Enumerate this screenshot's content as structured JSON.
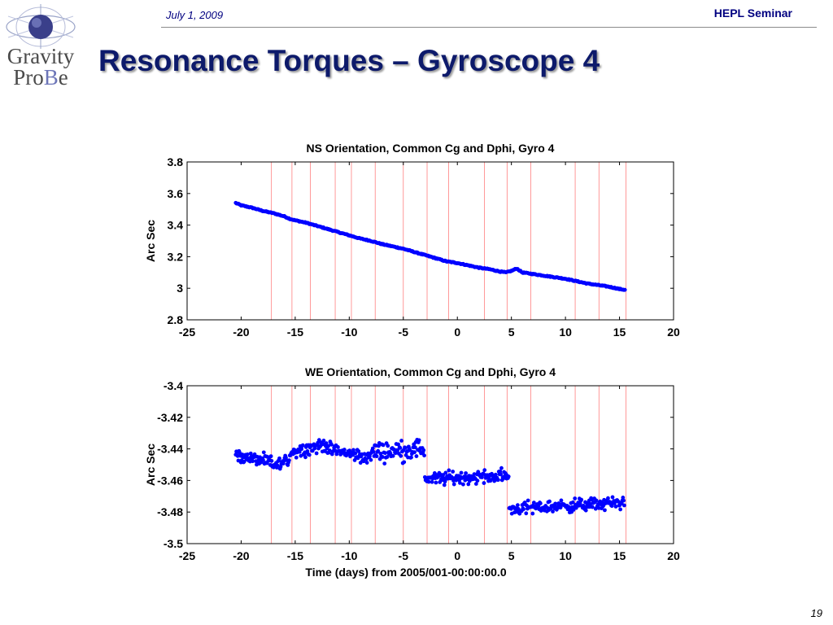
{
  "header": {
    "date": "July 1, 2009",
    "seminar": "HEPL Seminar",
    "title": "Resonance Torques – Gyroscope 4",
    "page_number": "19"
  },
  "logo": {
    "line1": "Gravity",
    "line2_a": "Pro",
    "line2_b": "B",
    "line2_c": "e"
  },
  "colors": {
    "series": "#0000ff",
    "resonance_line": "#ff8080",
    "title": "#0d1a6b"
  },
  "chart_data": [
    {
      "type": "scatter",
      "title": "NS Orientation, Common Cg and Dphi, Gyro 4",
      "xlabel": "",
      "ylabel": "Arc Sec",
      "xlim": [
        -25,
        20
      ],
      "ylim": [
        2.8,
        3.8
      ],
      "xticks": [
        -25,
        -20,
        -15,
        -10,
        -5,
        0,
        5,
        10,
        15,
        20
      ],
      "yticks": [
        2.8,
        3,
        3.2,
        3.4,
        3.6,
        3.8
      ],
      "ytick_labels": [
        "2.8",
        "3",
        "3.2",
        "3.4",
        "3.6",
        "3.8"
      ],
      "grid": false,
      "resonance_x": [
        -17.2,
        -15.3,
        -13.6,
        -11.3,
        -9.8,
        -7.6,
        -5.0,
        -2.8,
        -0.8,
        2.5,
        4.6,
        6.8,
        10.9,
        13.1,
        15.6
      ],
      "series": [
        {
          "values_x": [
            -20.5,
            -20,
            -19,
            -18,
            -17,
            -16.5,
            -16,
            -15.5,
            -15,
            -14,
            -13,
            -12,
            -11,
            -10,
            -9,
            -8,
            -7,
            -6,
            -5,
            -4,
            -3,
            -2,
            -1,
            0,
            1,
            2,
            3,
            4,
            4.5,
            5,
            5.5,
            6,
            7,
            8,
            9,
            10,
            11,
            12,
            13,
            14,
            15,
            15.5
          ],
          "values_y": [
            3.54,
            3.525,
            3.51,
            3.49,
            3.475,
            3.465,
            3.455,
            3.44,
            3.43,
            3.415,
            3.395,
            3.375,
            3.355,
            3.335,
            3.315,
            3.3,
            3.28,
            3.265,
            3.25,
            3.23,
            3.21,
            3.19,
            3.17,
            3.16,
            3.145,
            3.13,
            3.12,
            3.105,
            3.1,
            3.11,
            3.125,
            3.1,
            3.09,
            3.08,
            3.07,
            3.06,
            3.045,
            3.03,
            3.02,
            3.01,
            2.995,
            2.99
          ]
        }
      ]
    },
    {
      "type": "scatter",
      "title": "WE Orientation, Common Cg and Dphi, Gyro 4",
      "xlabel": "Time (days) from 2005/001-00:00:00.0",
      "ylabel": "Arc Sec",
      "xlim": [
        -25,
        20
      ],
      "ylim": [
        -3.5,
        -3.4
      ],
      "xticks": [
        -25,
        -20,
        -15,
        -10,
        -5,
        0,
        5,
        10,
        15,
        20
      ],
      "yticks": [
        -3.5,
        -3.48,
        -3.46,
        -3.44,
        -3.42,
        -3.4
      ],
      "ytick_labels": [
        "-3.5",
        "-3.48",
        "-3.46",
        "-3.44",
        "-3.42",
        "-3.4"
      ],
      "grid": false,
      "resonance_x": [
        -17.2,
        -15.3,
        -13.6,
        -11.3,
        -9.8,
        -7.6,
        -5.0,
        -2.8,
        -0.8,
        2.5,
        4.6,
        6.8,
        10.9,
        13.1,
        15.6
      ],
      "series": [
        {
          "segments": [
            {
              "x_start": -20.5,
              "x_end": -17.0,
              "y_start": -3.444,
              "y_end": -3.449,
              "spread": 0.004
            },
            {
              "x_start": -17.0,
              "x_end": -15.5,
              "y_start": -3.451,
              "y_end": -3.447,
              "spread": 0.004
            },
            {
              "x_start": -15.5,
              "x_end": -12.0,
              "y_start": -3.442,
              "y_end": -3.437,
              "spread": 0.004
            },
            {
              "x_start": -12.0,
              "x_end": -8.0,
              "y_start": -3.44,
              "y_end": -3.446,
              "spread": 0.004
            },
            {
              "x_start": -8.0,
              "x_end": -3.0,
              "y_start": -3.442,
              "y_end": -3.44,
              "spread": 0.006
            },
            {
              "x_start": -3.0,
              "x_end": 4.8,
              "y_start": -3.459,
              "y_end": -3.457,
              "spread": 0.004
            },
            {
              "x_start": 4.8,
              "x_end": 15.5,
              "y_start": -3.478,
              "y_end": -3.474,
              "spread": 0.004
            }
          ]
        }
      ]
    }
  ]
}
